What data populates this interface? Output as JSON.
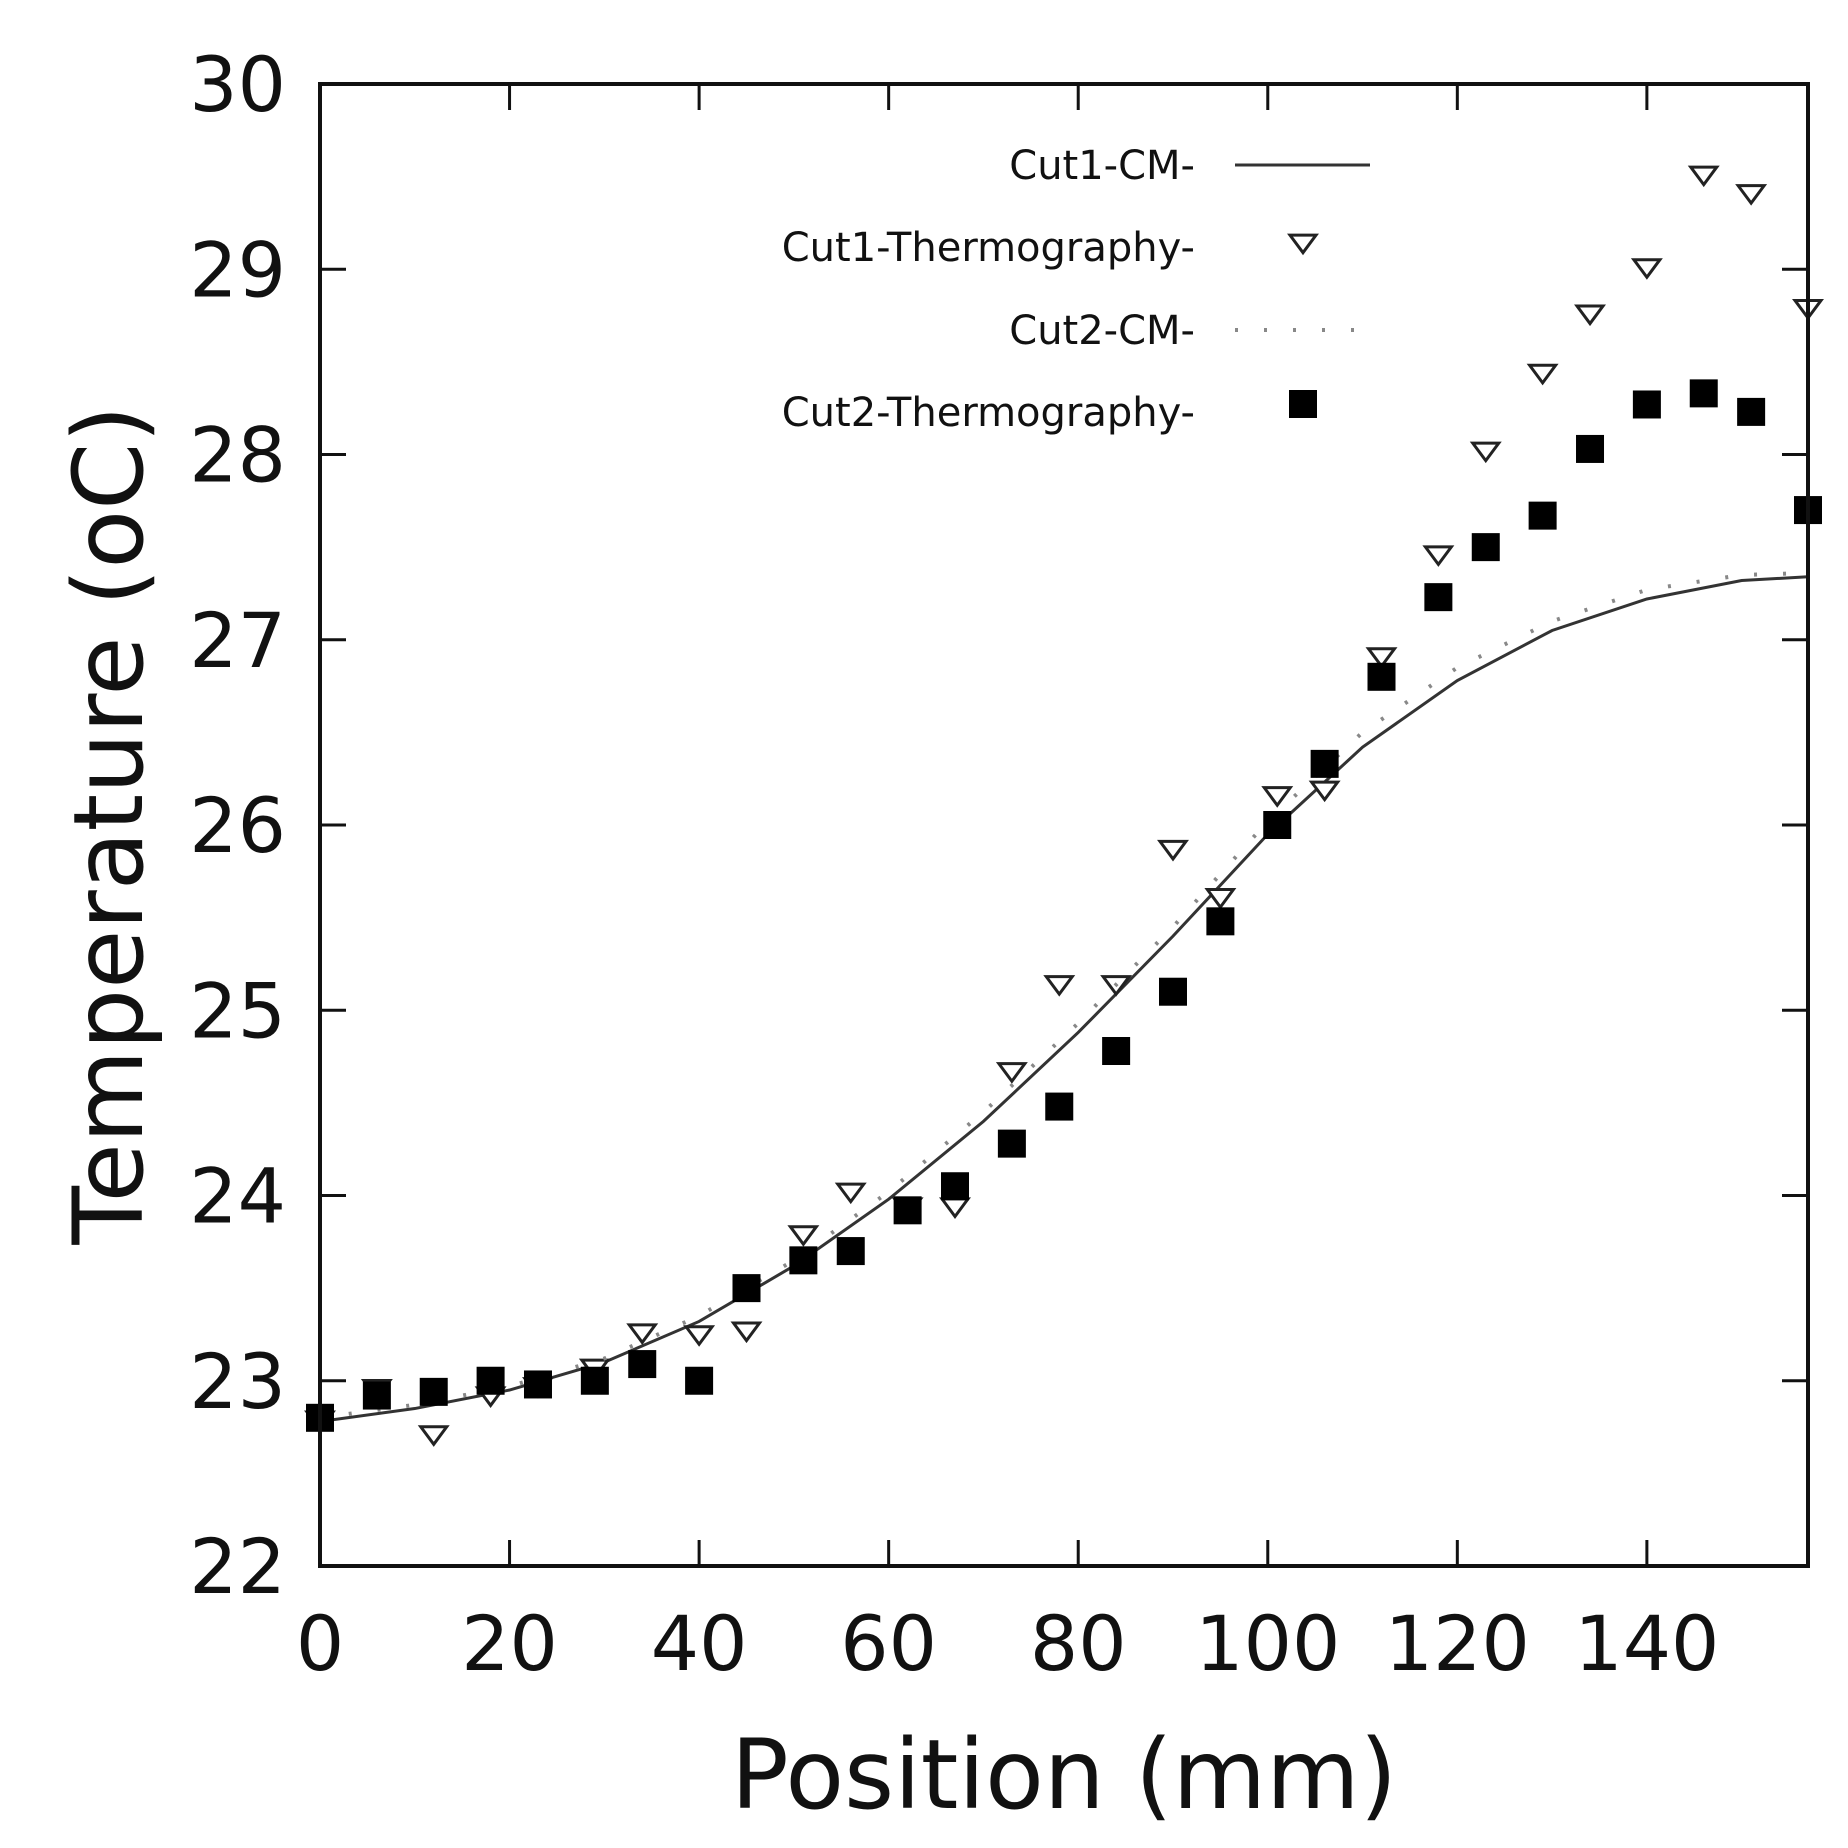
{
  "chart_data": {
    "type": "scatter",
    "title": "",
    "xlabel": "Position (mm)",
    "ylabel": "Temperature (oC)",
    "xlim": [
      0,
      157
    ],
    "ylim": [
      22,
      30
    ],
    "xticks": [
      0,
      20,
      40,
      60,
      80,
      100,
      120,
      140
    ],
    "xtick_labels": [
      "0",
      "20",
      "40",
      "60",
      "80",
      "100",
      "120",
      "140"
    ],
    "yticks": [
      22,
      23,
      24,
      25,
      26,
      27,
      28,
      29,
      30
    ],
    "ytick_labels": [
      "22",
      "23",
      "24",
      "25",
      "26",
      "27",
      "28",
      "29",
      "30"
    ],
    "grid": false,
    "legend_position": "top-right",
    "series": [
      {
        "name": "Cut1-CM-",
        "style": "solid-line",
        "x": [
          0,
          10,
          20,
          30,
          40,
          50,
          60,
          70,
          80,
          90,
          100,
          110,
          120,
          130,
          140,
          150,
          157
        ],
        "y": [
          22.78,
          22.85,
          22.95,
          23.1,
          23.32,
          23.62,
          23.98,
          24.4,
          24.88,
          25.4,
          25.95,
          26.42,
          26.78,
          27.05,
          27.22,
          27.32,
          27.34
        ]
      },
      {
        "name": "Cut1-Thermography-",
        "style": "open-triangle-down",
        "x": [
          0,
          6,
          12,
          18,
          23,
          29,
          34,
          40,
          45,
          51,
          56,
          62,
          67,
          73,
          78,
          84,
          90,
          95,
          101,
          106,
          112,
          118,
          123,
          129,
          134,
          140,
          146,
          151,
          157
        ],
        "y": [
          22.8,
          22.97,
          22.72,
          22.93,
          22.98,
          23.08,
          23.27,
          23.26,
          23.28,
          23.8,
          24.03,
          23.95,
          23.95,
          24.68,
          25.15,
          25.15,
          25.88,
          25.62,
          26.17,
          26.2,
          26.92,
          27.47,
          28.03,
          28.45,
          28.77,
          29.02,
          29.52,
          29.42,
          28.8
        ]
      },
      {
        "name": "Cut2-CM-",
        "style": "dotted-line",
        "x": [
          0,
          10,
          20,
          30,
          40,
          50,
          60,
          70,
          80,
          90,
          100,
          110,
          120,
          130,
          140,
          150,
          157
        ],
        "y": [
          22.8,
          22.87,
          22.97,
          23.12,
          23.35,
          23.65,
          24.02,
          24.45,
          24.93,
          25.45,
          26.02,
          26.5,
          26.85,
          27.1,
          27.27,
          27.35,
          27.36
        ]
      },
      {
        "name": "Cut2-Thermography-",
        "style": "filled-square",
        "x": [
          0,
          6,
          12,
          18,
          23,
          29,
          34,
          40,
          45,
          51,
          56,
          62,
          67,
          73,
          78,
          84,
          90,
          95,
          101,
          106,
          112,
          118,
          123,
          129,
          134,
          140,
          146,
          151,
          157
        ],
        "y": [
          22.8,
          22.92,
          22.94,
          23.0,
          22.98,
          23.0,
          23.09,
          23.0,
          23.5,
          23.65,
          23.7,
          23.92,
          24.05,
          24.28,
          24.48,
          24.78,
          25.1,
          25.48,
          26.0,
          26.33,
          26.8,
          27.23,
          27.5,
          27.67,
          28.03,
          28.27,
          28.33,
          28.23,
          27.7
        ]
      }
    ]
  }
}
